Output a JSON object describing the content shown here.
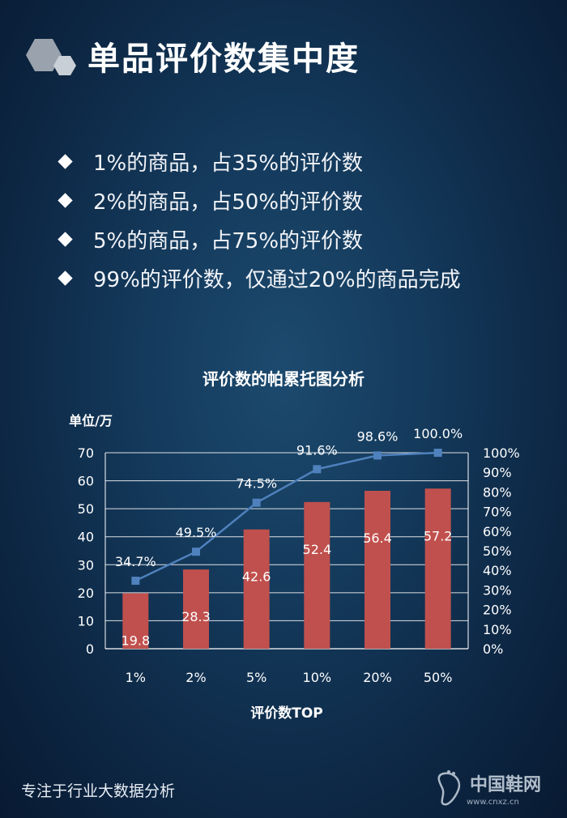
{
  "page": {
    "title": "单品评价数集中度",
    "footer": "专注于行业大数据分析",
    "watermark": {
      "name": "中国鞋网",
      "url": "www.cnxz.cn"
    }
  },
  "bullets": [
    "1%的商品，占35%的评价数",
    "2%的商品，占50%的评价数",
    "5%的商品，占75%的评价数",
    "99%的评价数，仅通过20%的商品完成"
  ],
  "colors": {
    "bar": "#c0504d",
    "line": "#4f81bd",
    "text": "#ffffff",
    "axis": "#ffffff"
  },
  "chart_data": {
    "type": "bar",
    "title": "评价数的帕累托图分析",
    "xlabel": "评价数TOP",
    "ylabel": "单位/万",
    "categories": [
      "1%",
      "2%",
      "5%",
      "10%",
      "20%",
      "50%"
    ],
    "series": [
      {
        "type": "bar",
        "values": [
          19.8,
          28.3,
          42.6,
          52.4,
          56.4,
          57.2
        ],
        "labels": [
          "19.8",
          "28.3",
          "42.6",
          "52.4",
          "56.4",
          "57.2"
        ]
      },
      {
        "type": "line",
        "axis": "right",
        "values": [
          34.7,
          49.5,
          74.5,
          91.6,
          98.6,
          100.0
        ],
        "labels": [
          "34.7%",
          "49.5%",
          "74.5%",
          "91.6%",
          "98.6%",
          "100.0%"
        ]
      }
    ],
    "ylim": [
      0,
      70
    ],
    "yticks": [
      "0",
      "10",
      "20",
      "30",
      "40",
      "50",
      "60",
      "70"
    ],
    "y2lim": [
      0,
      100
    ],
    "y2ticks": [
      "0%",
      "10%",
      "20%",
      "30%",
      "40%",
      "50%",
      "60%",
      "70%",
      "80%",
      "90%",
      "100%"
    ],
    "grid": true
  }
}
